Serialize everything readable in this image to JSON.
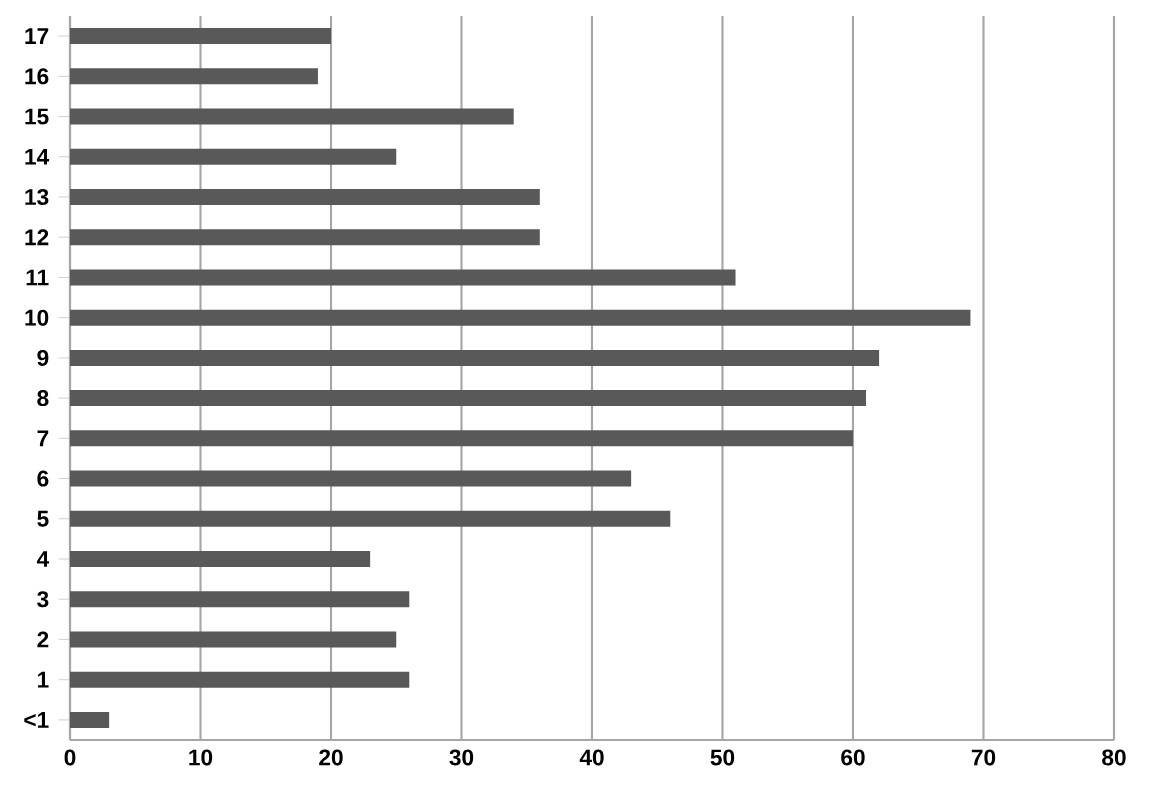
{
  "chart_data": {
    "type": "bar",
    "orientation": "horizontal",
    "categories": [
      "17",
      "16",
      "15",
      "14",
      "13",
      "12",
      "11",
      "10",
      "9",
      "8",
      "7",
      "6",
      "5",
      "4",
      "3",
      "2",
      "1",
      "<1"
    ],
    "values": [
      20,
      19,
      34,
      25,
      36,
      36,
      51,
      69,
      62,
      61,
      60,
      43,
      46,
      23,
      26,
      25,
      26,
      3
    ],
    "color": "#595959",
    "xlim": [
      0,
      80
    ],
    "xticks": [
      0,
      10,
      20,
      30,
      40,
      50,
      60,
      70,
      80
    ],
    "grid": "x"
  }
}
